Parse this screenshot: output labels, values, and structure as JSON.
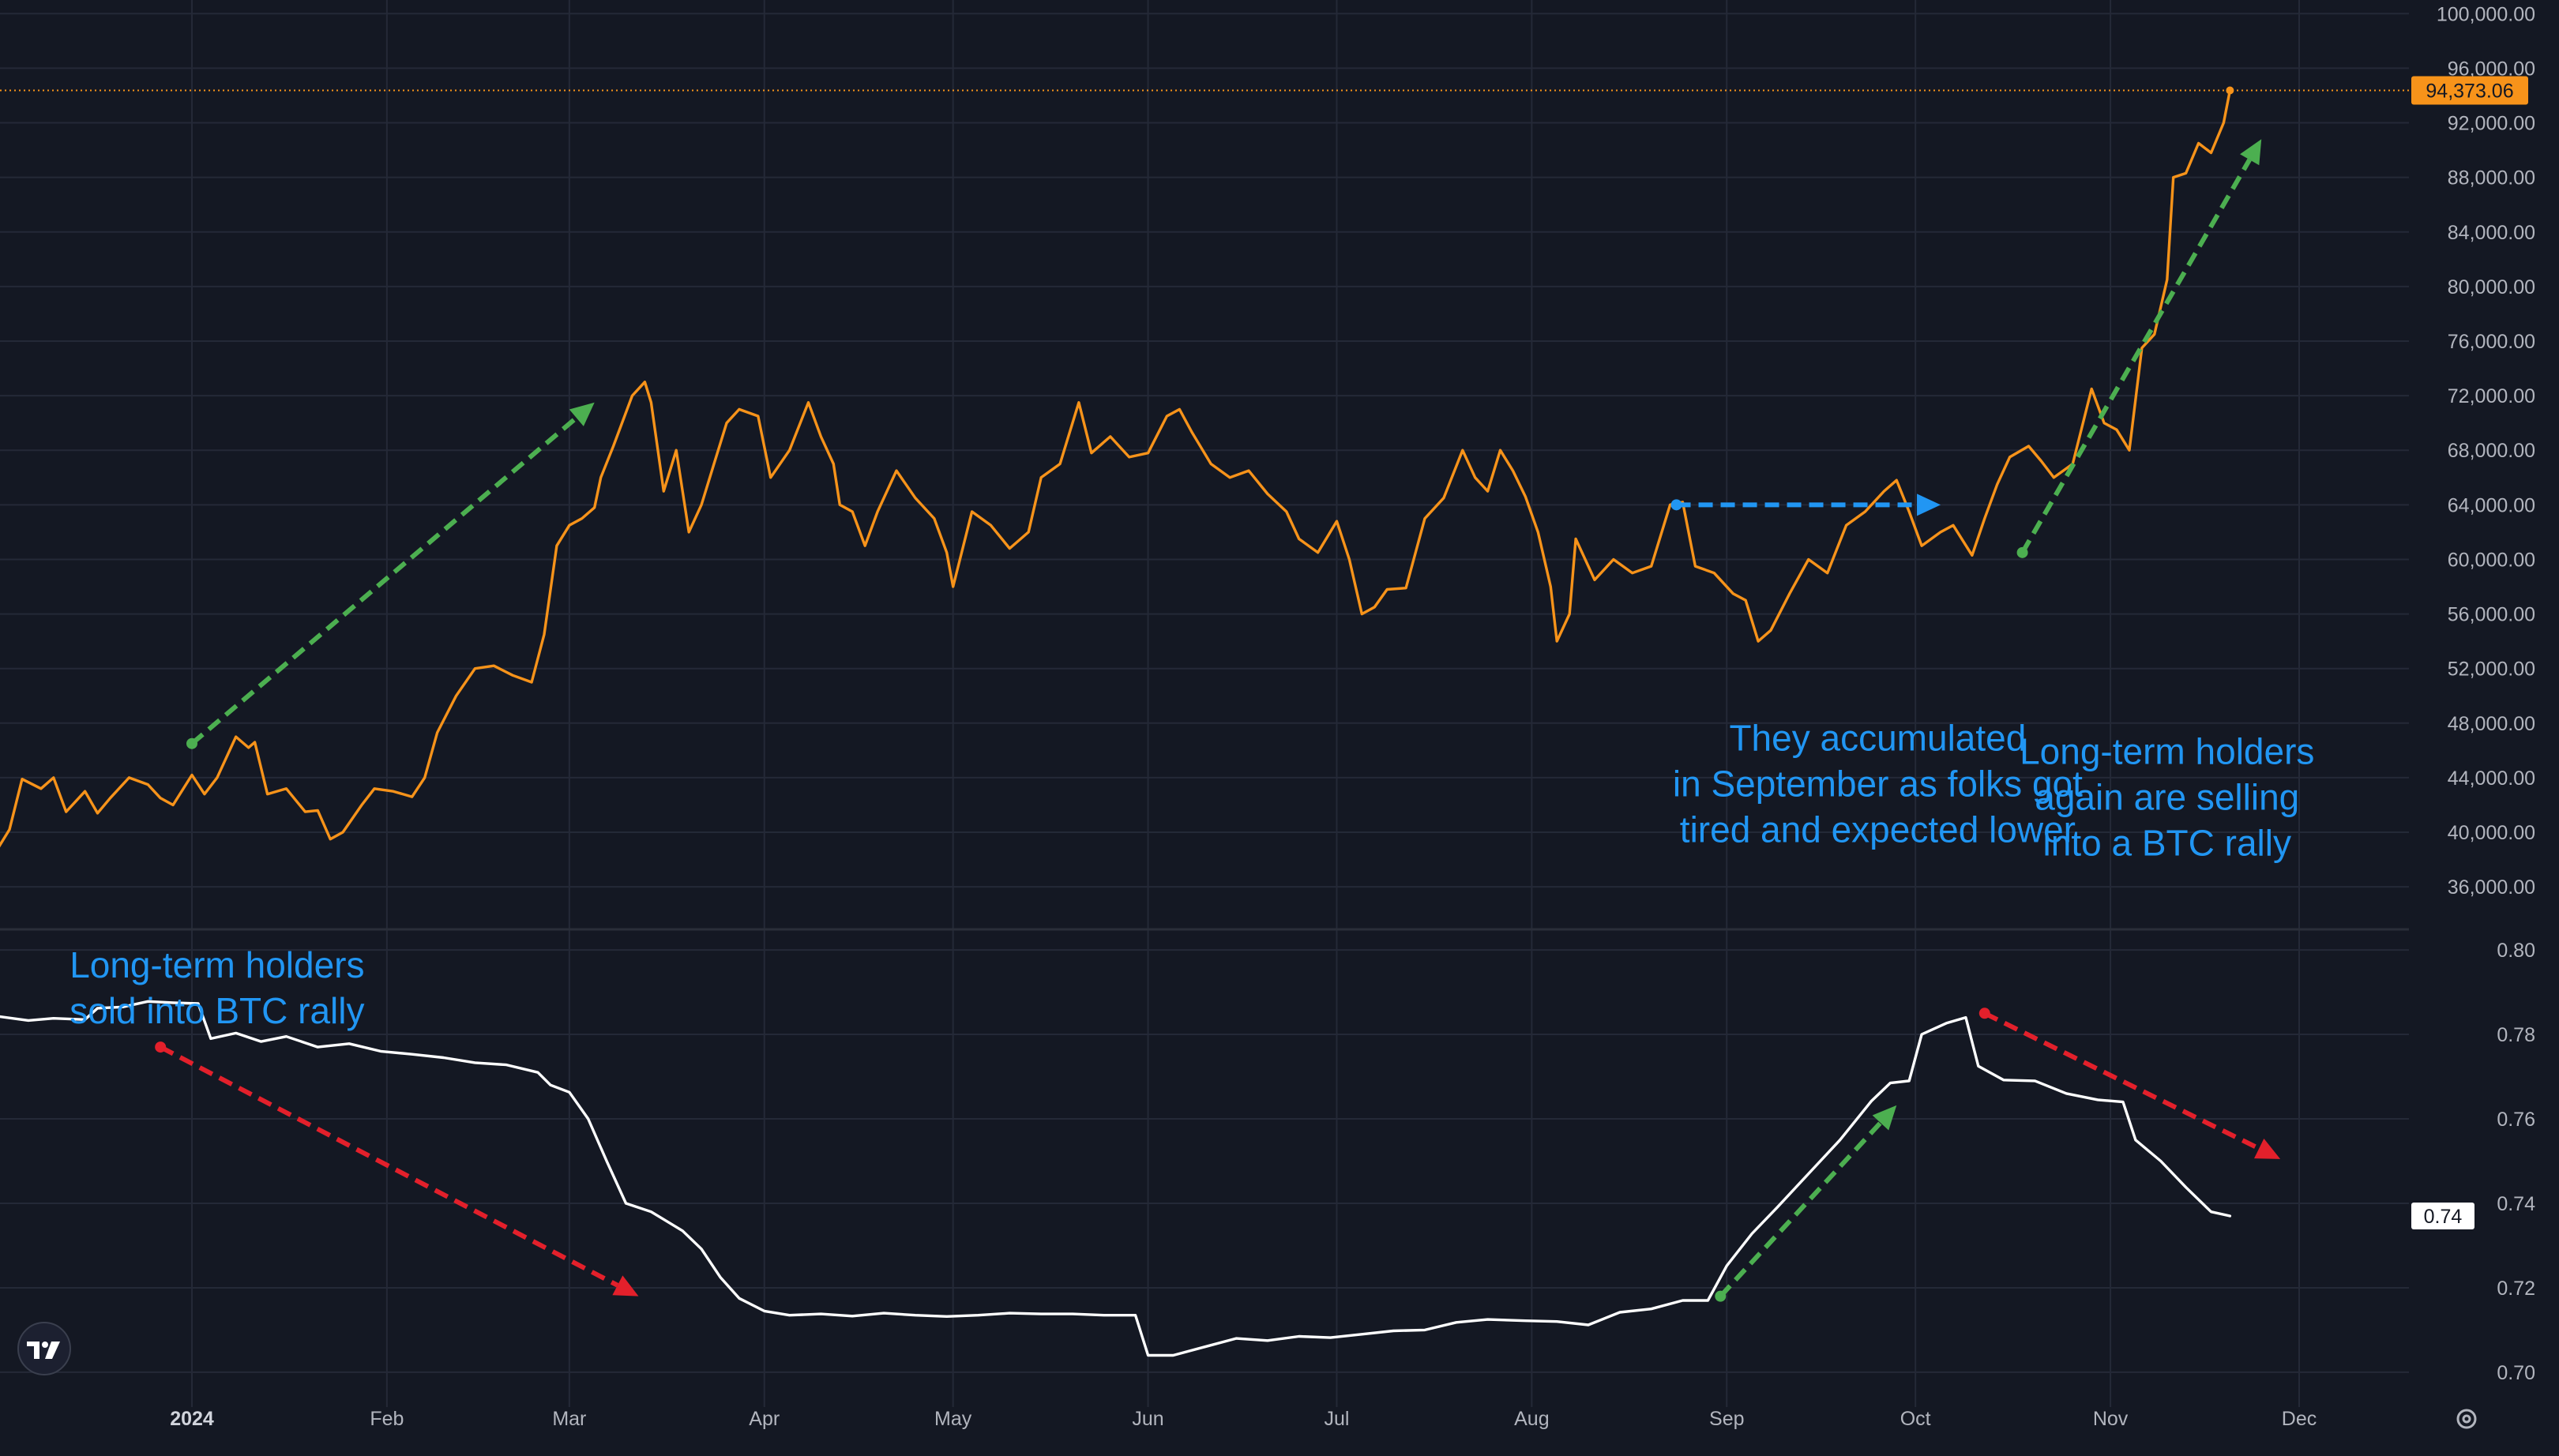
{
  "colors": {
    "background": "#141823",
    "grid": "#242937",
    "price_line": "#f7931a",
    "indicator_line": "#ffffff",
    "annotation_text": "#2196f3",
    "arrow_green": "#4caf50",
    "arrow_red": "#e3202b",
    "arrow_blue": "#2196f3",
    "tick_text": "#b2b5be"
  },
  "chart_data": [
    {
      "type": "line",
      "panel": "price",
      "series": [],
      "ylim": [
        33000,
        101000
      ],
      "ytick_values": [
        36000,
        40000,
        44000,
        48000,
        52000,
        56000,
        60000,
        64000,
        68000,
        72000,
        76000,
        80000,
        84000,
        88000,
        92000,
        96000,
        100000
      ],
      "ytick_labels": [
        "36,000.00",
        "40,000.00",
        "44,000.00",
        "48,000.00",
        "52,000.00",
        "56,000.00",
        "60,000.00",
        "64,000.00",
        "68,000.00",
        "72,000.00",
        "76,000.00",
        "80,000.00",
        "84,000.00",
        "88,000.00",
        "92,000.00",
        "96,000.00",
        "100,000.00"
      ],
      "last_value": 94373.06,
      "last_value_label": "94,373.06",
      "axis_side": "right",
      "grid": true,
      "points": [
        [
          "2023-12-01",
          38700
        ],
        [
          "2023-12-03",
          40200
        ],
        [
          "2023-12-05",
          43900
        ],
        [
          "2023-12-08",
          43200
        ],
        [
          "2023-12-10",
          44000
        ],
        [
          "2023-12-12",
          41500
        ],
        [
          "2023-12-15",
          43000
        ],
        [
          "2023-12-17",
          41400
        ],
        [
          "2023-12-19",
          42500
        ],
        [
          "2023-12-22",
          44000
        ],
        [
          "2023-12-25",
          43500
        ],
        [
          "2023-12-27",
          42500
        ],
        [
          "2023-12-29",
          42000
        ],
        [
          "2024-01-01",
          44200
        ],
        [
          "2024-01-03",
          42800
        ],
        [
          "2024-01-05",
          44000
        ],
        [
          "2024-01-08",
          47000
        ],
        [
          "2024-01-10",
          46200
        ],
        [
          "2024-01-11",
          46600
        ],
        [
          "2024-01-13",
          42800
        ],
        [
          "2024-01-16",
          43200
        ],
        [
          "2024-01-19",
          41500
        ],
        [
          "2024-01-21",
          41600
        ],
        [
          "2024-01-23",
          39500
        ],
        [
          "2024-01-25",
          40000
        ],
        [
          "2024-01-28",
          42000
        ],
        [
          "2024-01-30",
          43200
        ],
        [
          "2024-02-02",
          43000
        ],
        [
          "2024-02-05",
          42600
        ],
        [
          "2024-02-07",
          44000
        ],
        [
          "2024-02-09",
          47300
        ],
        [
          "2024-02-12",
          50000
        ],
        [
          "2024-02-15",
          52000
        ],
        [
          "2024-02-18",
          52200
        ],
        [
          "2024-02-21",
          51500
        ],
        [
          "2024-02-24",
          51000
        ],
        [
          "2024-02-26",
          54500
        ],
        [
          "2024-02-28",
          61000
        ],
        [
          "2024-03-01",
          62500
        ],
        [
          "2024-03-03",
          63000
        ],
        [
          "2024-03-05",
          63800
        ],
        [
          "2024-03-06",
          66000
        ],
        [
          "2024-03-08",
          68300
        ],
        [
          "2024-03-11",
          72000
        ],
        [
          "2024-03-13",
          73000
        ],
        [
          "2024-03-14",
          71500
        ],
        [
          "2024-03-16",
          65000
        ],
        [
          "2024-03-18",
          68000
        ],
        [
          "2024-03-20",
          62000
        ],
        [
          "2024-03-22",
          64000
        ],
        [
          "2024-03-24",
          67000
        ],
        [
          "2024-03-26",
          70000
        ],
        [
          "2024-03-28",
          71000
        ],
        [
          "2024-03-31",
          70500
        ],
        [
          "2024-04-02",
          66000
        ],
        [
          "2024-04-05",
          68000
        ],
        [
          "2024-04-08",
          71500
        ],
        [
          "2024-04-10",
          69000
        ],
        [
          "2024-04-12",
          67000
        ],
        [
          "2024-04-13",
          64000
        ],
        [
          "2024-04-15",
          63500
        ],
        [
          "2024-04-17",
          61000
        ],
        [
          "2024-04-19",
          63500
        ],
        [
          "2024-04-22",
          66500
        ],
        [
          "2024-04-25",
          64500
        ],
        [
          "2024-04-28",
          63000
        ],
        [
          "2024-04-30",
          60500
        ],
        [
          "2024-05-01",
          58000
        ],
        [
          "2024-05-04",
          63500
        ],
        [
          "2024-05-07",
          62500
        ],
        [
          "2024-05-10",
          60800
        ],
        [
          "2024-05-13",
          62000
        ],
        [
          "2024-05-15",
          66000
        ],
        [
          "2024-05-18",
          67000
        ],
        [
          "2024-05-21",
          71500
        ],
        [
          "2024-05-23",
          67800
        ],
        [
          "2024-05-26",
          69000
        ],
        [
          "2024-05-29",
          67500
        ],
        [
          "2024-06-01",
          67800
        ],
        [
          "2024-06-04",
          70500
        ],
        [
          "2024-06-06",
          71000
        ],
        [
          "2024-06-08",
          69300
        ],
        [
          "2024-06-11",
          67000
        ],
        [
          "2024-06-14",
          66000
        ],
        [
          "2024-06-17",
          66500
        ],
        [
          "2024-06-20",
          64800
        ],
        [
          "2024-06-23",
          63500
        ],
        [
          "2024-06-25",
          61500
        ],
        [
          "2024-06-28",
          60500
        ],
        [
          "2024-07-01",
          62800
        ],
        [
          "2024-07-03",
          60000
        ],
        [
          "2024-07-05",
          56000
        ],
        [
          "2024-07-07",
          56500
        ],
        [
          "2024-07-09",
          57800
        ],
        [
          "2024-07-12",
          57900
        ],
        [
          "2024-07-15",
          63000
        ],
        [
          "2024-07-18",
          64500
        ],
        [
          "2024-07-21",
          68000
        ],
        [
          "2024-07-23",
          66000
        ],
        [
          "2024-07-25",
          65000
        ],
        [
          "2024-07-27",
          68000
        ],
        [
          "2024-07-29",
          66500
        ],
        [
          "2024-07-31",
          64600
        ],
        [
          "2024-08-02",
          62000
        ],
        [
          "2024-08-04",
          58000
        ],
        [
          "2024-08-05",
          54000
        ],
        [
          "2024-08-07",
          56000
        ],
        [
          "2024-08-08",
          61500
        ],
        [
          "2024-08-11",
          58500
        ],
        [
          "2024-08-14",
          60000
        ],
        [
          "2024-08-17",
          59000
        ],
        [
          "2024-08-20",
          59500
        ],
        [
          "2024-08-23",
          64000
        ],
        [
          "2024-08-25",
          64200
        ],
        [
          "2024-08-27",
          59500
        ],
        [
          "2024-08-30",
          59000
        ],
        [
          "2024-09-02",
          57500
        ],
        [
          "2024-09-04",
          57000
        ],
        [
          "2024-09-06",
          54000
        ],
        [
          "2024-09-08",
          54800
        ],
        [
          "2024-09-11",
          57500
        ],
        [
          "2024-09-14",
          60000
        ],
        [
          "2024-09-17",
          59000
        ],
        [
          "2024-09-20",
          62500
        ],
        [
          "2024-09-23",
          63500
        ],
        [
          "2024-09-26",
          65000
        ],
        [
          "2024-09-28",
          65800
        ],
        [
          "2024-09-30",
          63500
        ],
        [
          "2024-10-02",
          61000
        ],
        [
          "2024-10-05",
          62000
        ],
        [
          "2024-10-07",
          62500
        ],
        [
          "2024-10-10",
          60300
        ],
        [
          "2024-10-12",
          63000
        ],
        [
          "2024-10-14",
          65500
        ],
        [
          "2024-10-16",
          67500
        ],
        [
          "2024-10-19",
          68300
        ],
        [
          "2024-10-21",
          67200
        ],
        [
          "2024-10-23",
          66000
        ],
        [
          "2024-10-26",
          67000
        ],
        [
          "2024-10-29",
          72500
        ],
        [
          "2024-10-31",
          70000
        ],
        [
          "2024-11-02",
          69500
        ],
        [
          "2024-11-04",
          68000
        ],
        [
          "2024-11-06",
          75500
        ],
        [
          "2024-11-08",
          76500
        ],
        [
          "2024-11-10",
          80500
        ],
        [
          "2024-11-11",
          88000
        ],
        [
          "2024-11-13",
          88300
        ],
        [
          "2024-11-15",
          90500
        ],
        [
          "2024-11-17",
          89800
        ],
        [
          "2024-11-19",
          92000
        ],
        [
          "2024-11-20",
          94373
        ]
      ]
    },
    {
      "type": "line",
      "panel": "indicator",
      "series": [],
      "ylim": [
        0.6955,
        0.8045
      ],
      "ytick_values": [
        0.7,
        0.72,
        0.74,
        0.76,
        0.78,
        0.8
      ],
      "ytick_labels": [
        "0.70",
        "0.72",
        "0.74",
        "0.76",
        "0.78",
        "0.80"
      ],
      "last_value": 0.74,
      "last_value_label": "0.74",
      "axis_side": "right",
      "grid": true,
      "points": [
        [
          "2023-12-01",
          0.7843
        ],
        [
          "2023-12-06",
          0.7833
        ],
        [
          "2023-12-10",
          0.7838
        ],
        [
          "2023-12-15",
          0.7835
        ],
        [
          "2023-12-17",
          0.7862
        ],
        [
          "2023-12-21",
          0.7865
        ],
        [
          "2023-12-25",
          0.7878
        ],
        [
          "2023-12-29",
          0.7875
        ],
        [
          "2024-01-02",
          0.7873
        ],
        [
          "2024-01-04",
          0.779
        ],
        [
          "2024-01-08",
          0.7803
        ],
        [
          "2024-01-12",
          0.7783
        ],
        [
          "2024-01-16",
          0.7795
        ],
        [
          "2024-01-21",
          0.777
        ],
        [
          "2024-01-26",
          0.7778
        ],
        [
          "2024-01-31",
          0.776
        ],
        [
          "2024-02-05",
          0.7753
        ],
        [
          "2024-02-10",
          0.7745
        ],
        [
          "2024-02-15",
          0.7733
        ],
        [
          "2024-02-20",
          0.7728
        ],
        [
          "2024-02-25",
          0.771
        ],
        [
          "2024-02-27",
          0.768
        ],
        [
          "2024-03-01",
          0.7663
        ],
        [
          "2024-03-04",
          0.76
        ],
        [
          "2024-03-07",
          0.7498
        ],
        [
          "2024-03-10",
          0.74
        ],
        [
          "2024-03-14",
          0.738
        ],
        [
          "2024-03-19",
          0.7335
        ],
        [
          "2024-03-22",
          0.7292
        ],
        [
          "2024-03-25",
          0.7225
        ],
        [
          "2024-03-28",
          0.7175
        ],
        [
          "2024-04-01",
          0.7145
        ],
        [
          "2024-04-05",
          0.7135
        ],
        [
          "2024-04-10",
          0.7138
        ],
        [
          "2024-04-15",
          0.7133
        ],
        [
          "2024-04-20",
          0.714
        ],
        [
          "2024-04-25",
          0.7135
        ],
        [
          "2024-04-30",
          0.7132
        ],
        [
          "2024-05-05",
          0.7135
        ],
        [
          "2024-05-10",
          0.714
        ],
        [
          "2024-05-15",
          0.7138
        ],
        [
          "2024-05-20",
          0.7138
        ],
        [
          "2024-05-25",
          0.7135
        ],
        [
          "2024-05-30",
          0.7135
        ],
        [
          "2024-06-01",
          0.704
        ],
        [
          "2024-06-05",
          0.704
        ],
        [
          "2024-06-10",
          0.706
        ],
        [
          "2024-06-15",
          0.708
        ],
        [
          "2024-06-20",
          0.7075
        ],
        [
          "2024-06-25",
          0.7085
        ],
        [
          "2024-06-30",
          0.7082
        ],
        [
          "2024-07-05",
          0.709
        ],
        [
          "2024-07-10",
          0.7098
        ],
        [
          "2024-07-15",
          0.71
        ],
        [
          "2024-07-20",
          0.7118
        ],
        [
          "2024-07-25",
          0.7125
        ],
        [
          "2024-07-31",
          0.7122
        ],
        [
          "2024-08-05",
          0.712
        ],
        [
          "2024-08-10",
          0.7112
        ],
        [
          "2024-08-15",
          0.7142
        ],
        [
          "2024-08-20",
          0.715
        ],
        [
          "2024-08-25",
          0.717
        ],
        [
          "2024-08-29",
          0.717
        ],
        [
          "2024-09-01",
          0.7252
        ],
        [
          "2024-09-05",
          0.7328
        ],
        [
          "2024-09-09",
          0.739
        ],
        [
          "2024-09-14",
          0.747
        ],
        [
          "2024-09-19",
          0.755
        ],
        [
          "2024-09-24",
          0.7642
        ],
        [
          "2024-09-27",
          0.7685
        ],
        [
          "2024-09-30",
          0.769
        ],
        [
          "2024-10-02",
          0.78
        ],
        [
          "2024-10-06",
          0.7827
        ],
        [
          "2024-10-09",
          0.784
        ],
        [
          "2024-10-11",
          0.7725
        ],
        [
          "2024-10-15",
          0.7692
        ],
        [
          "2024-10-20",
          0.769
        ],
        [
          "2024-10-25",
          0.766
        ],
        [
          "2024-10-30",
          0.7645
        ],
        [
          "2024-11-03",
          0.764
        ],
        [
          "2024-11-05",
          0.755
        ],
        [
          "2024-11-09",
          0.75
        ],
        [
          "2024-11-13",
          0.7438
        ],
        [
          "2024-11-17",
          0.738
        ],
        [
          "2024-11-20",
          0.737
        ]
      ]
    }
  ],
  "xaxis": {
    "ticks": [
      {
        "date": "2024-01-01",
        "label": "2024",
        "bold": true
      },
      {
        "date": "2024-02-01",
        "label": "Feb",
        "bold": false
      },
      {
        "date": "2024-03-01",
        "label": "Mar",
        "bold": false
      },
      {
        "date": "2024-04-01",
        "label": "Apr",
        "bold": false
      },
      {
        "date": "2024-05-01",
        "label": "May",
        "bold": false
      },
      {
        "date": "2024-06-01",
        "label": "Jun",
        "bold": false
      },
      {
        "date": "2024-07-01",
        "label": "Jul",
        "bold": false
      },
      {
        "date": "2024-08-01",
        "label": "Aug",
        "bold": false
      },
      {
        "date": "2024-09-01",
        "label": "Sep",
        "bold": false
      },
      {
        "date": "2024-10-01",
        "label": "Oct",
        "bold": false
      },
      {
        "date": "2024-11-01",
        "label": "Nov",
        "bold": false
      },
      {
        "date": "2024-12-01",
        "label": "Dec",
        "bold": false
      }
    ]
  },
  "annotations": [
    {
      "lines": [
        "Long-term holders",
        "sold into BTC rally"
      ],
      "panel": "indicator",
      "anchor_date": "2024-01-05",
      "anchor_value": 0.7935,
      "align": "middle"
    },
    {
      "lines": [
        "They accumulated",
        "in September as folks got",
        "tired and expected lower"
      ],
      "panel": "price",
      "anchor_date": "2024-09-25",
      "anchor_value": 46000,
      "align": "middle"
    },
    {
      "lines": [
        "Long-term holders",
        "again are selling",
        "into a BTC rally"
      ],
      "panel": "price",
      "anchor_date": "2024-11-10",
      "anchor_value": 45000,
      "align": "middle"
    }
  ],
  "arrows": [
    {
      "panel": "price",
      "color": "green",
      "from": [
        "2024-01-01",
        46500
      ],
      "to": [
        "2024-03-05",
        71500
      ]
    },
    {
      "panel": "price",
      "color": "blue",
      "from": [
        "2024-08-24",
        64000
      ],
      "to": [
        "2024-10-05",
        64000
      ]
    },
    {
      "panel": "price",
      "color": "green",
      "from": [
        "2024-10-18",
        60500
      ],
      "to": [
        "2024-11-25",
        90800
      ]
    },
    {
      "panel": "indicator",
      "color": "red",
      "from": [
        "2023-12-27",
        0.777
      ],
      "to": [
        "2024-03-12",
        0.718
      ]
    },
    {
      "panel": "indicator",
      "color": "green",
      "from": [
        "2024-08-31",
        0.718
      ],
      "to": [
        "2024-09-28",
        0.7632
      ]
    },
    {
      "panel": "indicator",
      "color": "red",
      "from": [
        "2024-10-12",
        0.785
      ],
      "to": [
        "2024-11-28",
        0.7505
      ]
    }
  ],
  "logo_icon": "tradingview-logo-icon",
  "settings_icon": "gear-icon"
}
